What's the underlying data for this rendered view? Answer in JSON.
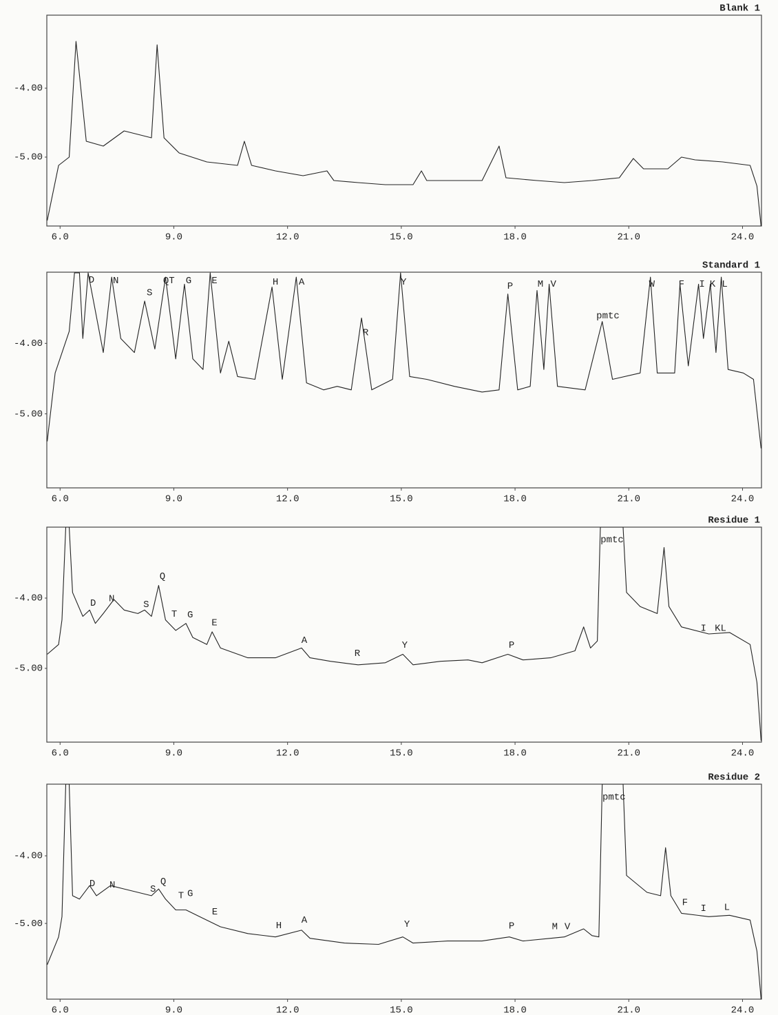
{
  "chart_data": [
    {
      "type": "line",
      "title": "Blank 1",
      "color": "#222222",
      "xlim": [
        5.65,
        24.5
      ],
      "ylim": [
        -6.0,
        -2.94
      ],
      "xticks": [
        {
          "value": 6,
          "label": "6.0"
        },
        {
          "value": 9,
          "label": "9.0"
        },
        {
          "value": 12,
          "label": "12.0"
        },
        {
          "value": 15,
          "label": "15.0"
        },
        {
          "value": 18,
          "label": "18.0"
        },
        {
          "value": 21,
          "label": "21.0"
        },
        {
          "value": 24,
          "label": "24.0"
        }
      ],
      "yticks": [
        {
          "value": -4,
          "label": "-4.00"
        },
        {
          "value": -5,
          "label": "-5.00"
        }
      ],
      "x": [
        5.66,
        5.96,
        6.24,
        6.42,
        6.69,
        7.14,
        7.69,
        8.05,
        8.41,
        8.56,
        8.74,
        9.14,
        9.87,
        10.68,
        10.86,
        11.05,
        11.68,
        12.41,
        13.04,
        13.22,
        13.86,
        14.58,
        15.31,
        15.53,
        15.67,
        16.4,
        17.13,
        17.58,
        17.76,
        18.58,
        19.3,
        20.03,
        20.75,
        21.12,
        21.39,
        22.03,
        22.39,
        22.75,
        23.48,
        24.2,
        24.38,
        24.49
      ],
      "values": [
        -5.92,
        -5.12,
        -5.0,
        -3.32,
        -4.77,
        -4.84,
        -4.62,
        -4.67,
        -4.72,
        -3.37,
        -4.72,
        -4.94,
        -5.07,
        -5.12,
        -4.77,
        -5.12,
        -5.2,
        -5.27,
        -5.2,
        -5.34,
        -5.37,
        -5.4,
        -5.4,
        -5.2,
        -5.34,
        -5.34,
        -5.34,
        -4.84,
        -5.3,
        -5.34,
        -5.37,
        -5.34,
        -5.3,
        -5.02,
        -5.17,
        -5.17,
        -5.0,
        -5.04,
        -5.07,
        -5.12,
        -5.42,
        -6.0
      ],
      "annotations": []
    },
    {
      "type": "line",
      "title": "Standard 1",
      "color": "#222222",
      "xlim": [
        5.65,
        24.5
      ],
      "ylim": [
        -6.05,
        -2.99
      ],
      "xticks": [
        {
          "value": 6,
          "label": "6.0"
        },
        {
          "value": 9,
          "label": "9.0"
        },
        {
          "value": 12,
          "label": "12.0"
        },
        {
          "value": 15,
          "label": "15.0"
        },
        {
          "value": 18,
          "label": "18.0"
        },
        {
          "value": 21,
          "label": "21.0"
        },
        {
          "value": 24,
          "label": "24.0"
        }
      ],
      "yticks": [
        {
          "value": -4,
          "label": "-4.00"
        },
        {
          "value": -5,
          "label": "-5.00"
        }
      ],
      "x": [
        5.66,
        5.87,
        6.24,
        6.38,
        6.51,
        6.6,
        6.74,
        7.14,
        7.36,
        7.6,
        7.96,
        8.23,
        8.5,
        8.78,
        9.05,
        9.28,
        9.5,
        9.77,
        9.96,
        10.23,
        10.45,
        10.68,
        11.14,
        11.59,
        11.86,
        12.23,
        12.5,
        12.95,
        13.31,
        13.68,
        13.95,
        14.22,
        14.77,
        14.98,
        15.22,
        15.67,
        16.4,
        17.13,
        17.58,
        17.81,
        18.07,
        18.4,
        18.58,
        18.76,
        18.9,
        19.12,
        19.85,
        20.3,
        20.57,
        21.3,
        21.57,
        21.75,
        22.21,
        22.35,
        22.57,
        22.84,
        22.97,
        23.15,
        23.3,
        23.44,
        23.62,
        24.02,
        24.29,
        24.49
      ],
      "values": [
        -5.39,
        -4.42,
        -3.83,
        -3.0,
        -3.0,
        -3.93,
        -3.0,
        -4.13,
        -3.06,
        -3.93,
        -4.13,
        -3.4,
        -4.08,
        -3.06,
        -4.22,
        -3.16,
        -4.22,
        -4.37,
        -3.0,
        -4.42,
        -3.97,
        -4.47,
        -4.51,
        -3.2,
        -4.51,
        -3.06,
        -4.56,
        -4.66,
        -4.61,
        -4.66,
        -3.64,
        -4.66,
        -4.51,
        -3.0,
        -4.47,
        -4.51,
        -4.61,
        -4.69,
        -4.66,
        -3.3,
        -4.66,
        -4.61,
        -3.25,
        -4.37,
        -3.16,
        -4.61,
        -4.66,
        -3.69,
        -4.51,
        -4.42,
        -3.06,
        -4.42,
        -4.42,
        -3.16,
        -4.32,
        -3.16,
        -3.93,
        -3.16,
        -4.13,
        -3.06,
        -4.37,
        -4.42,
        -4.51,
        -5.49
      ],
      "annotations": [
        {
          "text": "D",
          "x": 6.83,
          "y": -3.1
        },
        {
          "text": "N",
          "x": 7.47,
          "y": -3.11
        },
        {
          "text": "S",
          "x": 8.36,
          "y": -3.28
        },
        {
          "text": "QT",
          "x": 8.87,
          "y": -3.11
        },
        {
          "text": "G",
          "x": 9.39,
          "y": -3.11
        },
        {
          "text": "E",
          "x": 10.07,
          "y": -3.11
        },
        {
          "text": "H",
          "x": 11.68,
          "y": -3.13
        },
        {
          "text": "A",
          "x": 12.37,
          "y": -3.13
        },
        {
          "text": "R",
          "x": 14.06,
          "y": -3.85
        },
        {
          "text": "Y",
          "x": 15.06,
          "y": -3.13
        },
        {
          "text": "P",
          "x": 17.87,
          "y": -3.19
        },
        {
          "text": "M",
          "x": 18.67,
          "y": -3.16
        },
        {
          "text": "V",
          "x": 19.01,
          "y": -3.16
        },
        {
          "text": "pmtc",
          "x": 20.45,
          "y": -3.61
        },
        {
          "text": "W",
          "x": 21.61,
          "y": -3.16
        },
        {
          "text": "F",
          "x": 22.39,
          "y": -3.16
        },
        {
          "text": "I",
          "x": 22.93,
          "y": -3.16
        },
        {
          "text": "K",
          "x": 23.21,
          "y": -3.16
        },
        {
          "text": "L",
          "x": 23.53,
          "y": -3.16
        }
      ]
    },
    {
      "type": "line",
      "title": "Residue 1",
      "color": "#222222",
      "xlim": [
        5.65,
        24.5
      ],
      "ylim": [
        -6.05,
        -2.99
      ],
      "xticks": [
        {
          "value": 6,
          "label": "6.0"
        },
        {
          "value": 9,
          "label": "9.0"
        },
        {
          "value": 12,
          "label": "12.0"
        },
        {
          "value": 15,
          "label": "15.0"
        },
        {
          "value": 18,
          "label": "18.0"
        },
        {
          "value": 21,
          "label": "21.0"
        },
        {
          "value": 24,
          "label": "24.0"
        }
      ],
      "yticks": [
        {
          "value": -4,
          "label": "-4.00"
        },
        {
          "value": -5,
          "label": "-5.00"
        }
      ],
      "x": [
        5.66,
        5.96,
        6.05,
        6.15,
        6.24,
        6.33,
        6.6,
        6.78,
        6.93,
        7.14,
        7.42,
        7.69,
        8.05,
        8.23,
        8.41,
        8.6,
        8.78,
        9.05,
        9.32,
        9.5,
        9.87,
        10.01,
        10.23,
        10.95,
        11.68,
        12.37,
        12.59,
        13.13,
        13.86,
        14.58,
        15.04,
        15.31,
        16.04,
        16.76,
        17.13,
        17.81,
        18.21,
        18.94,
        19.58,
        19.81,
        19.99,
        20.17,
        20.25,
        20.85,
        20.94,
        21.3,
        21.75,
        21.93,
        22.06,
        22.39,
        23.11,
        23.66,
        24.2,
        24.38,
        24.49
      ],
      "values": [
        -4.8,
        -4.66,
        -4.31,
        -2.99,
        -2.99,
        -3.92,
        -4.26,
        -4.17,
        -4.36,
        -4.22,
        -4.02,
        -4.17,
        -4.22,
        -4.17,
        -4.26,
        -3.82,
        -4.31,
        -4.46,
        -4.36,
        -4.56,
        -4.66,
        -4.48,
        -4.71,
        -4.85,
        -4.85,
        -4.71,
        -4.85,
        -4.9,
        -4.95,
        -4.92,
        -4.8,
        -4.95,
        -4.9,
        -4.88,
        -4.92,
        -4.8,
        -4.88,
        -4.85,
        -4.75,
        -4.41,
        -4.71,
        -4.61,
        -2.99,
        -2.99,
        -3.92,
        -4.12,
        -4.22,
        -3.28,
        -4.12,
        -4.41,
        -4.51,
        -4.49,
        -4.66,
        -5.2,
        -6.03
      ],
      "annotations": [
        {
          "text": "D",
          "x": 6.87,
          "y": -4.07
        },
        {
          "text": "N",
          "x": 7.36,
          "y": -4.01
        },
        {
          "text": "S",
          "x": 8.27,
          "y": -4.09
        },
        {
          "text": "Q",
          "x": 8.7,
          "y": -3.69
        },
        {
          "text": "T",
          "x": 9.01,
          "y": -4.23
        },
        {
          "text": "G",
          "x": 9.43,
          "y": -4.24
        },
        {
          "text": "E",
          "x": 10.07,
          "y": -4.35
        },
        {
          "text": "A",
          "x": 12.44,
          "y": -4.6
        },
        {
          "text": "R",
          "x": 13.84,
          "y": -4.79
        },
        {
          "text": "Y",
          "x": 15.09,
          "y": -4.67
        },
        {
          "text": "P",
          "x": 17.91,
          "y": -4.67
        },
        {
          "text": "pmtc",
          "x": 20.56,
          "y": -3.17
        },
        {
          "text": "I",
          "x": 22.97,
          "y": -4.43
        },
        {
          "text": "KL",
          "x": 23.42,
          "y": -4.43
        }
      ]
    },
    {
      "type": "line",
      "title": "Residue 2",
      "color": "#222222",
      "xlim": [
        5.65,
        24.5
      ],
      "ylim": [
        -6.12,
        -2.94
      ],
      "xticks": [
        {
          "value": 6,
          "label": "6.0"
        },
        {
          "value": 9,
          "label": "9.0"
        },
        {
          "value": 12,
          "label": "12.0"
        },
        {
          "value": 15,
          "label": "15.0"
        },
        {
          "value": 18,
          "label": "18.0"
        },
        {
          "value": 21,
          "label": "21.0"
        },
        {
          "value": 24,
          "label": "24.0"
        }
      ],
      "yticks": [
        {
          "value": -4,
          "label": "-4.00"
        },
        {
          "value": -5,
          "label": "-5.00"
        }
      ],
      "x": [
        5.66,
        5.96,
        6.05,
        6.15,
        6.24,
        6.33,
        6.51,
        6.78,
        6.96,
        7.33,
        7.69,
        8.05,
        8.41,
        8.6,
        8.78,
        9.05,
        9.32,
        9.68,
        10.23,
        10.95,
        11.68,
        12.37,
        12.59,
        13.5,
        14.4,
        15.04,
        15.31,
        16.22,
        17.13,
        17.85,
        18.21,
        18.94,
        19.3,
        19.81,
        20.03,
        20.21,
        20.3,
        20.85,
        20.94,
        21.48,
        21.84,
        21.97,
        22.11,
        22.39,
        23.11,
        23.66,
        24.2,
        24.38,
        24.49
      ],
      "values": [
        -5.61,
        -5.2,
        -4.9,
        -2.94,
        -2.94,
        -4.59,
        -4.64,
        -4.44,
        -4.59,
        -4.44,
        -4.49,
        -4.54,
        -4.59,
        -4.49,
        -4.64,
        -4.8,
        -4.8,
        -4.9,
        -5.05,
        -5.15,
        -5.2,
        -5.1,
        -5.22,
        -5.29,
        -5.31,
        -5.2,
        -5.29,
        -5.26,
        -5.26,
        -5.2,
        -5.26,
        -5.22,
        -5.2,
        -5.08,
        -5.18,
        -5.2,
        -2.94,
        -2.94,
        -4.29,
        -4.54,
        -4.59,
        -3.88,
        -4.59,
        -4.85,
        -4.9,
        -4.88,
        -4.95,
        -5.41,
        -6.12
      ],
      "annotations": [
        {
          "text": "D",
          "x": 6.85,
          "y": -4.41
        },
        {
          "text": "N",
          "x": 7.38,
          "y": -4.43
        },
        {
          "text": "S",
          "x": 8.45,
          "y": -4.49
        },
        {
          "text": "Q",
          "x": 8.72,
          "y": -4.38
        },
        {
          "text": "T",
          "x": 9.19,
          "y": -4.59
        },
        {
          "text": "G",
          "x": 9.43,
          "y": -4.56
        },
        {
          "text": "E",
          "x": 10.08,
          "y": -4.83
        },
        {
          "text": "H",
          "x": 11.77,
          "y": -5.03
        },
        {
          "text": "A",
          "x": 12.44,
          "y": -4.95
        },
        {
          "text": "Y",
          "x": 15.15,
          "y": -5.01
        },
        {
          "text": "P",
          "x": 17.91,
          "y": -5.04
        },
        {
          "text": "M",
          "x": 19.05,
          "y": -5.05
        },
        {
          "text": "V",
          "x": 19.38,
          "y": -5.05
        },
        {
          "text": "pmtc",
          "x": 20.61,
          "y": -3.13
        },
        {
          "text": "F",
          "x": 22.48,
          "y": -4.69
        },
        {
          "text": "I",
          "x": 22.97,
          "y": -4.78
        },
        {
          "text": "L",
          "x": 23.59,
          "y": -4.76
        }
      ]
    }
  ]
}
